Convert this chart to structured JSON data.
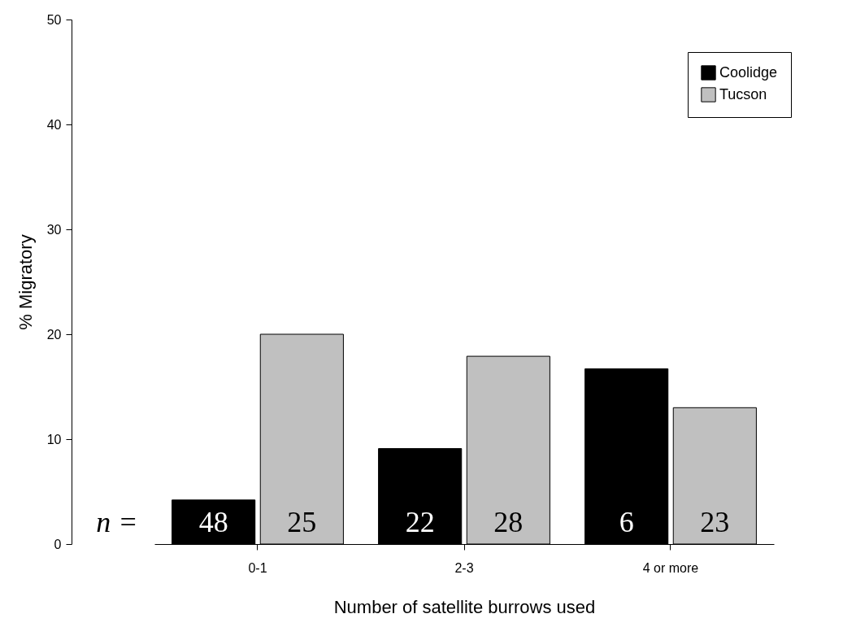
{
  "chart_data": {
    "type": "bar",
    "xlabel": "Number of satellite burrows used",
    "ylabel": "% Migratory",
    "categories": [
      "0-1",
      "2-3",
      "4 or more"
    ],
    "series": [
      {
        "name": "Coolidge",
        "color": "#000000",
        "values": [
          4.2,
          9.1,
          16.7
        ]
      },
      {
        "name": "Tucson",
        "color": "#c0c0c0",
        "values": [
          20.0,
          17.9,
          13.0
        ]
      }
    ],
    "ylim": [
      0,
      50
    ],
    "yticks": [
      0,
      10,
      20,
      30,
      40,
      50
    ],
    "grid": false,
    "legend": "top right",
    "annotations": [
      "n =",
      "48",
      "25",
      "22",
      "28",
      "6",
      "23"
    ]
  }
}
